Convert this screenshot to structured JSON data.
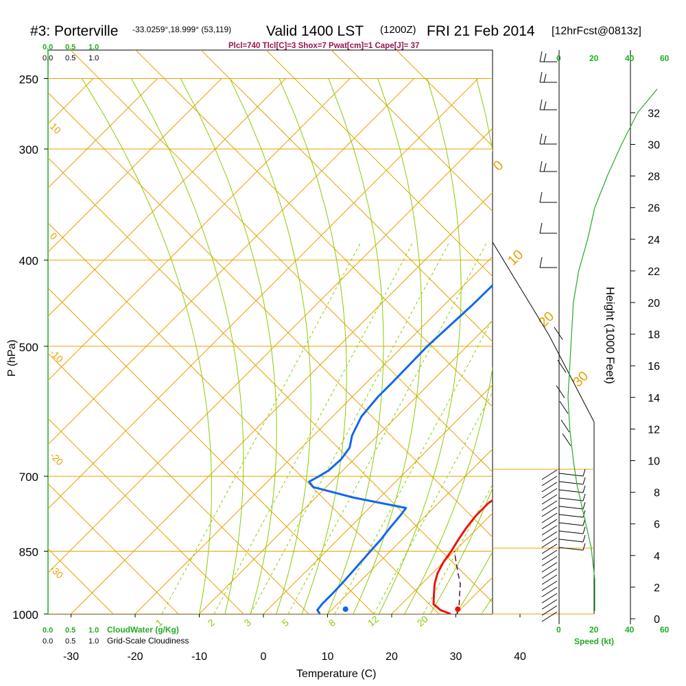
{
  "header": {
    "station": "#3: Porterville",
    "coords": "-33.0259°,18.999° (53,119)",
    "valid": "Valid 1400 LST",
    "utc": "(1200Z)",
    "date": "FRI 21 Feb 2014",
    "fcst": "[12hrFcst@0813z]"
  },
  "indices": "Plcl=740 Tlcl[C]=3 Shox=7 Pwat[cm]=1 Cape[J]= 37",
  "scales": {
    "cloudwater": [
      "0.0",
      "0.5",
      "1.0"
    ],
    "cloudiness": [
      "0.0",
      "0.5",
      "1.0"
    ],
    "cloudwater_label": "CloudWater (g/Kg)",
    "cloudiness_label": "Grid-Scale Cloudiness",
    "speed_ticks": [
      "0",
      "20",
      "40",
      "60"
    ],
    "speed_label": "Speed (kt)"
  },
  "colors": {
    "temperature": "#ee1111",
    "dewpoint": "#1166ee",
    "isotherm": "#e8a000",
    "mixing_ratio": "#88cc00",
    "parcel": "#660033",
    "wind_speed": "#22aa22"
  },
  "chart_data": {
    "type": "line",
    "subtype": "skew-t log-p",
    "xlabel": "Temperature (C)",
    "ylabel": "P (hPa)",
    "y2label": "Height (1000 Feet)",
    "x_ticks": [
      -30,
      -20,
      -10,
      0,
      10,
      20,
      30,
      40
    ],
    "y_ticks": [
      250,
      300,
      400,
      500,
      700,
      850,
      1000
    ],
    "height_ticks": [
      0,
      2,
      4,
      6,
      8,
      10,
      12,
      14,
      16,
      18,
      20,
      22,
      24,
      26,
      28,
      30,
      32
    ],
    "log_scale_y": true,
    "series": [
      {
        "label": "temperature",
        "points": [
          [
            1000,
            29.2
          ],
          [
            990,
            27
          ],
          [
            975,
            25
          ],
          [
            950,
            23.5
          ],
          [
            925,
            22
          ],
          [
            900,
            20.8
          ],
          [
            875,
            20
          ],
          [
            850,
            19.5
          ],
          [
            825,
            18.8
          ],
          [
            800,
            18.2
          ],
          [
            775,
            17.8
          ],
          [
            750,
            17.8
          ],
          [
            740,
            18.2
          ],
          [
            725,
            18.3
          ],
          [
            700,
            17.3
          ],
          [
            680,
            16.3
          ],
          [
            650,
            15
          ],
          [
            620,
            14.3
          ],
          [
            600,
            13.9
          ],
          [
            550,
            13.4
          ],
          [
            500,
            12.3
          ],
          [
            450,
            10.8
          ],
          [
            400,
            9.3
          ],
          [
            350,
            8.1
          ],
          [
            300,
            7.1
          ],
          [
            270,
            6.6
          ]
        ]
      },
      {
        "label": "dewpoint",
        "points": [
          [
            1000,
            8.8
          ],
          [
            990,
            7.8
          ],
          [
            975,
            7.6
          ],
          [
            950,
            7.6
          ],
          [
            925,
            7.5
          ],
          [
            900,
            7.3
          ],
          [
            875,
            7.1
          ],
          [
            850,
            6.9
          ],
          [
            825,
            6.7
          ],
          [
            800,
            6.3
          ],
          [
            775,
            6.0
          ],
          [
            760,
            5.7
          ],
          [
            740,
            -4
          ],
          [
            725,
            -10
          ],
          [
            720,
            -12
          ],
          [
            710,
            -13.5
          ],
          [
            700,
            -12.8
          ],
          [
            690,
            -12.2
          ],
          [
            670,
            -12
          ],
          [
            650,
            -12.5
          ],
          [
            630,
            -14
          ],
          [
            600,
            -15.5
          ],
          [
            570,
            -16
          ],
          [
            550,
            -16
          ],
          [
            500,
            -16.2
          ],
          [
            450,
            -15.6
          ],
          [
            400,
            -15.4
          ],
          [
            350,
            -15.4
          ],
          [
            300,
            -15.2
          ],
          [
            265,
            -14.7
          ]
        ]
      },
      {
        "label": "parcel",
        "points": [
          [
            1000,
            30.2
          ],
          [
            975,
            29
          ],
          [
            950,
            27.5
          ],
          [
            925,
            26
          ],
          [
            900,
            24
          ],
          [
            875,
            22
          ],
          [
            850,
            20
          ]
        ]
      }
    ],
    "surface_markers": [
      {
        "label": "temperature",
        "pressure": 1000,
        "value": 30.3
      },
      {
        "label": "dewpoint",
        "pressure": 1000,
        "value": 12.8
      }
    ],
    "dry_adiabat_labels": [
      "10",
      "0",
      "-10",
      "-20",
      "-30"
    ],
    "isotherm_labels": [
      "0",
      "10",
      "20",
      "30"
    ],
    "mixing_ratio_labels": [
      "1",
      "2",
      "3",
      "5",
      "8",
      "12",
      "20"
    ],
    "wind_speed_profile": {
      "x_unit": "kt",
      "y_unit": "1000 ft",
      "points": [
        [
          20,
          0.5
        ],
        [
          20,
          1.5
        ],
        [
          20,
          2.5
        ],
        [
          19,
          3.5
        ],
        [
          18,
          4.5
        ],
        [
          16,
          5.5
        ],
        [
          14,
          6.5
        ],
        [
          12,
          7.5
        ],
        [
          10,
          8.5
        ],
        [
          8,
          10
        ],
        [
          6,
          12
        ],
        [
          5,
          14
        ],
        [
          6,
          16
        ],
        [
          7,
          18
        ],
        [
          8,
          20
        ],
        [
          11,
          22
        ],
        [
          16,
          24
        ],
        [
          20,
          26
        ],
        [
          27,
          28
        ],
        [
          35,
          30
        ],
        [
          44,
          32
        ],
        [
          55,
          33.5
        ]
      ]
    }
  }
}
